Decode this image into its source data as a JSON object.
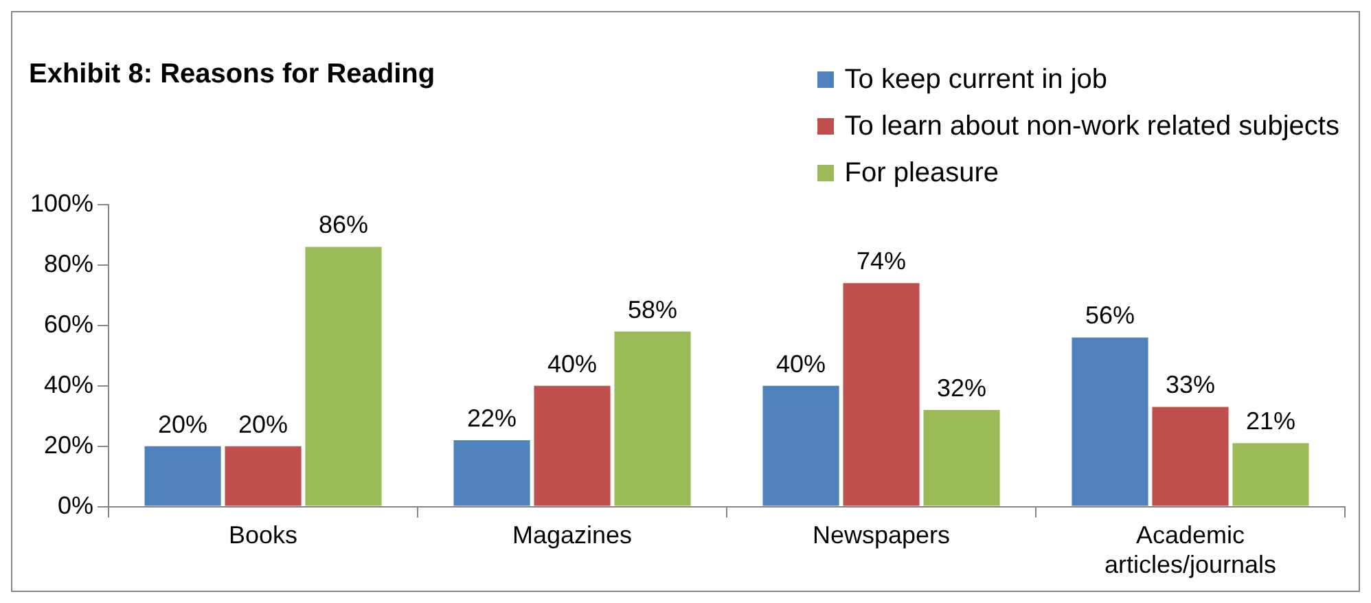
{
  "chart_data": {
    "type": "bar",
    "title": "Exhibit 8: Reasons for Reading",
    "categories": [
      "Books",
      "Magazines",
      "Newspapers",
      "Academic articles/journals"
    ],
    "series": [
      {
        "name": "To keep current in job",
        "color": "#4f81bd",
        "values": [
          20,
          22,
          40,
          56
        ],
        "value_labels": [
          "20%",
          "22%",
          "40%",
          "56%"
        ]
      },
      {
        "name": "To learn about non-work related subjects",
        "color": "#c0504d",
        "values": [
          20,
          40,
          74,
          33
        ],
        "value_labels": [
          "20%",
          "40%",
          "74%",
          "33%"
        ]
      },
      {
        "name": "For pleasure",
        "color": "#9bbb59",
        "values": [
          86,
          58,
          32,
          21
        ],
        "value_labels": [
          "86%",
          "58%",
          "32%",
          "21%"
        ]
      }
    ],
    "ylim": [
      0,
      100
    ],
    "yticks": [
      {
        "value": 0,
        "label": "0%"
      },
      {
        "value": 20,
        "label": "20%"
      },
      {
        "value": 40,
        "label": "40%"
      },
      {
        "value": 60,
        "label": "60%"
      },
      {
        "value": 80,
        "label": "80%"
      },
      {
        "value": 100,
        "label": "100%"
      }
    ],
    "grid": false,
    "legend": "top right"
  }
}
